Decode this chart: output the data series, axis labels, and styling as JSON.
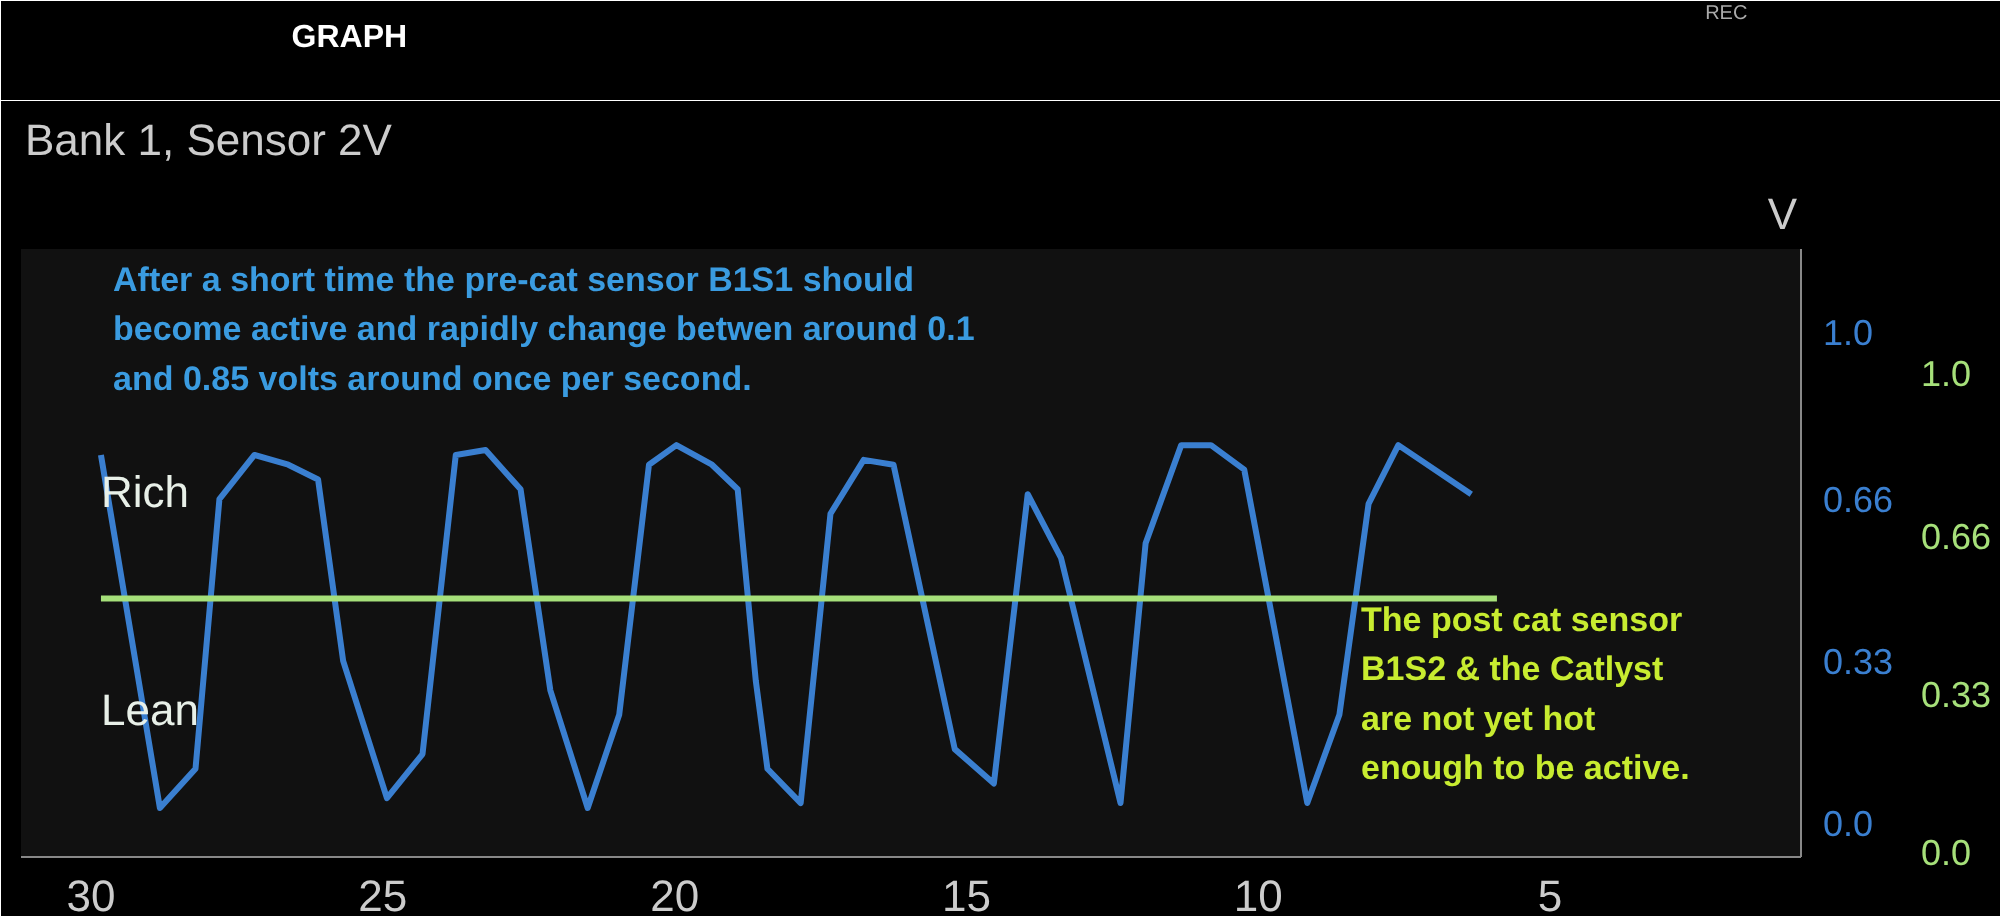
{
  "chart_data": {
    "type": "line",
    "title": "Bank 1, Sensor 2V",
    "ylabel": "V",
    "xlim": [
      31.2,
      0.7
    ],
    "xticks": [
      30,
      25,
      20,
      15,
      10,
      5
    ],
    "ylim": [
      -0.07,
      1.17
    ],
    "yticks": [
      {
        "value": 0,
        "label": "0.0"
      },
      0.33,
      0.66,
      {
        "value": 1,
        "label": "1.0"
      }
    ],
    "y2lim": [
      -0.01,
      1.26
    ],
    "y2ticks": [
      {
        "value": 0,
        "label": "0.0"
      },
      0.33,
      0.66,
      {
        "value": 1,
        "label": "1.0"
      }
    ],
    "grid": false,
    "marker": "none",
    "line_style": "solid",
    "series": [
      {
        "color": "#3a7fd0",
        "x": [
          29.83,
          28.82,
          28.21,
          27.8,
          27.2,
          26.62,
          26.11,
          25.68,
          24.93,
          24.32,
          23.75,
          23.24,
          22.64,
          22.13,
          21.49,
          20.95,
          20.44,
          19.97,
          19.36,
          18.92,
          18.61,
          18.41,
          17.84,
          17.33,
          16.76,
          16.25,
          15.2,
          14.53,
          13.95,
          13.38,
          12.36,
          11.93,
          11.32,
          10.81,
          10.24,
          9.16,
          8.61,
          8.11,
          7.6,
          6.35
        ],
        "values": [
          0.75,
          0.03,
          0.11,
          0.66,
          0.75,
          0.73,
          0.7,
          0.33,
          0.05,
          0.14,
          0.75,
          0.76,
          0.68,
          0.27,
          0.03,
          0.22,
          0.73,
          0.77,
          0.73,
          0.68,
          0.29,
          0.11,
          0.04,
          0.63,
          0.74,
          0.73,
          0.15,
          0.08,
          0.67,
          0.54,
          0.04,
          0.57,
          0.77,
          0.77,
          0.72,
          0.04,
          0.22,
          0.65,
          0.77,
          0.67
        ]
      },
      {
        "color": "#a6e07a",
        "axis": "y2",
        "x": [
          29.83,
          5.91
        ],
        "values": [
          0.53,
          0.53
        ]
      }
    ],
    "annotations": [
      "GRAPH",
      "REC",
      "After a short time the pre-cat sensor B1S1  should\nbecome active and rapidly change betwen around 0.1\nand 0.85  volts around once per second.",
      "The post cat sensor\nB1S2  & the Catlyst\nare not yet hot\nenough to be active.",
      "Rich",
      "Lean"
    ]
  }
}
